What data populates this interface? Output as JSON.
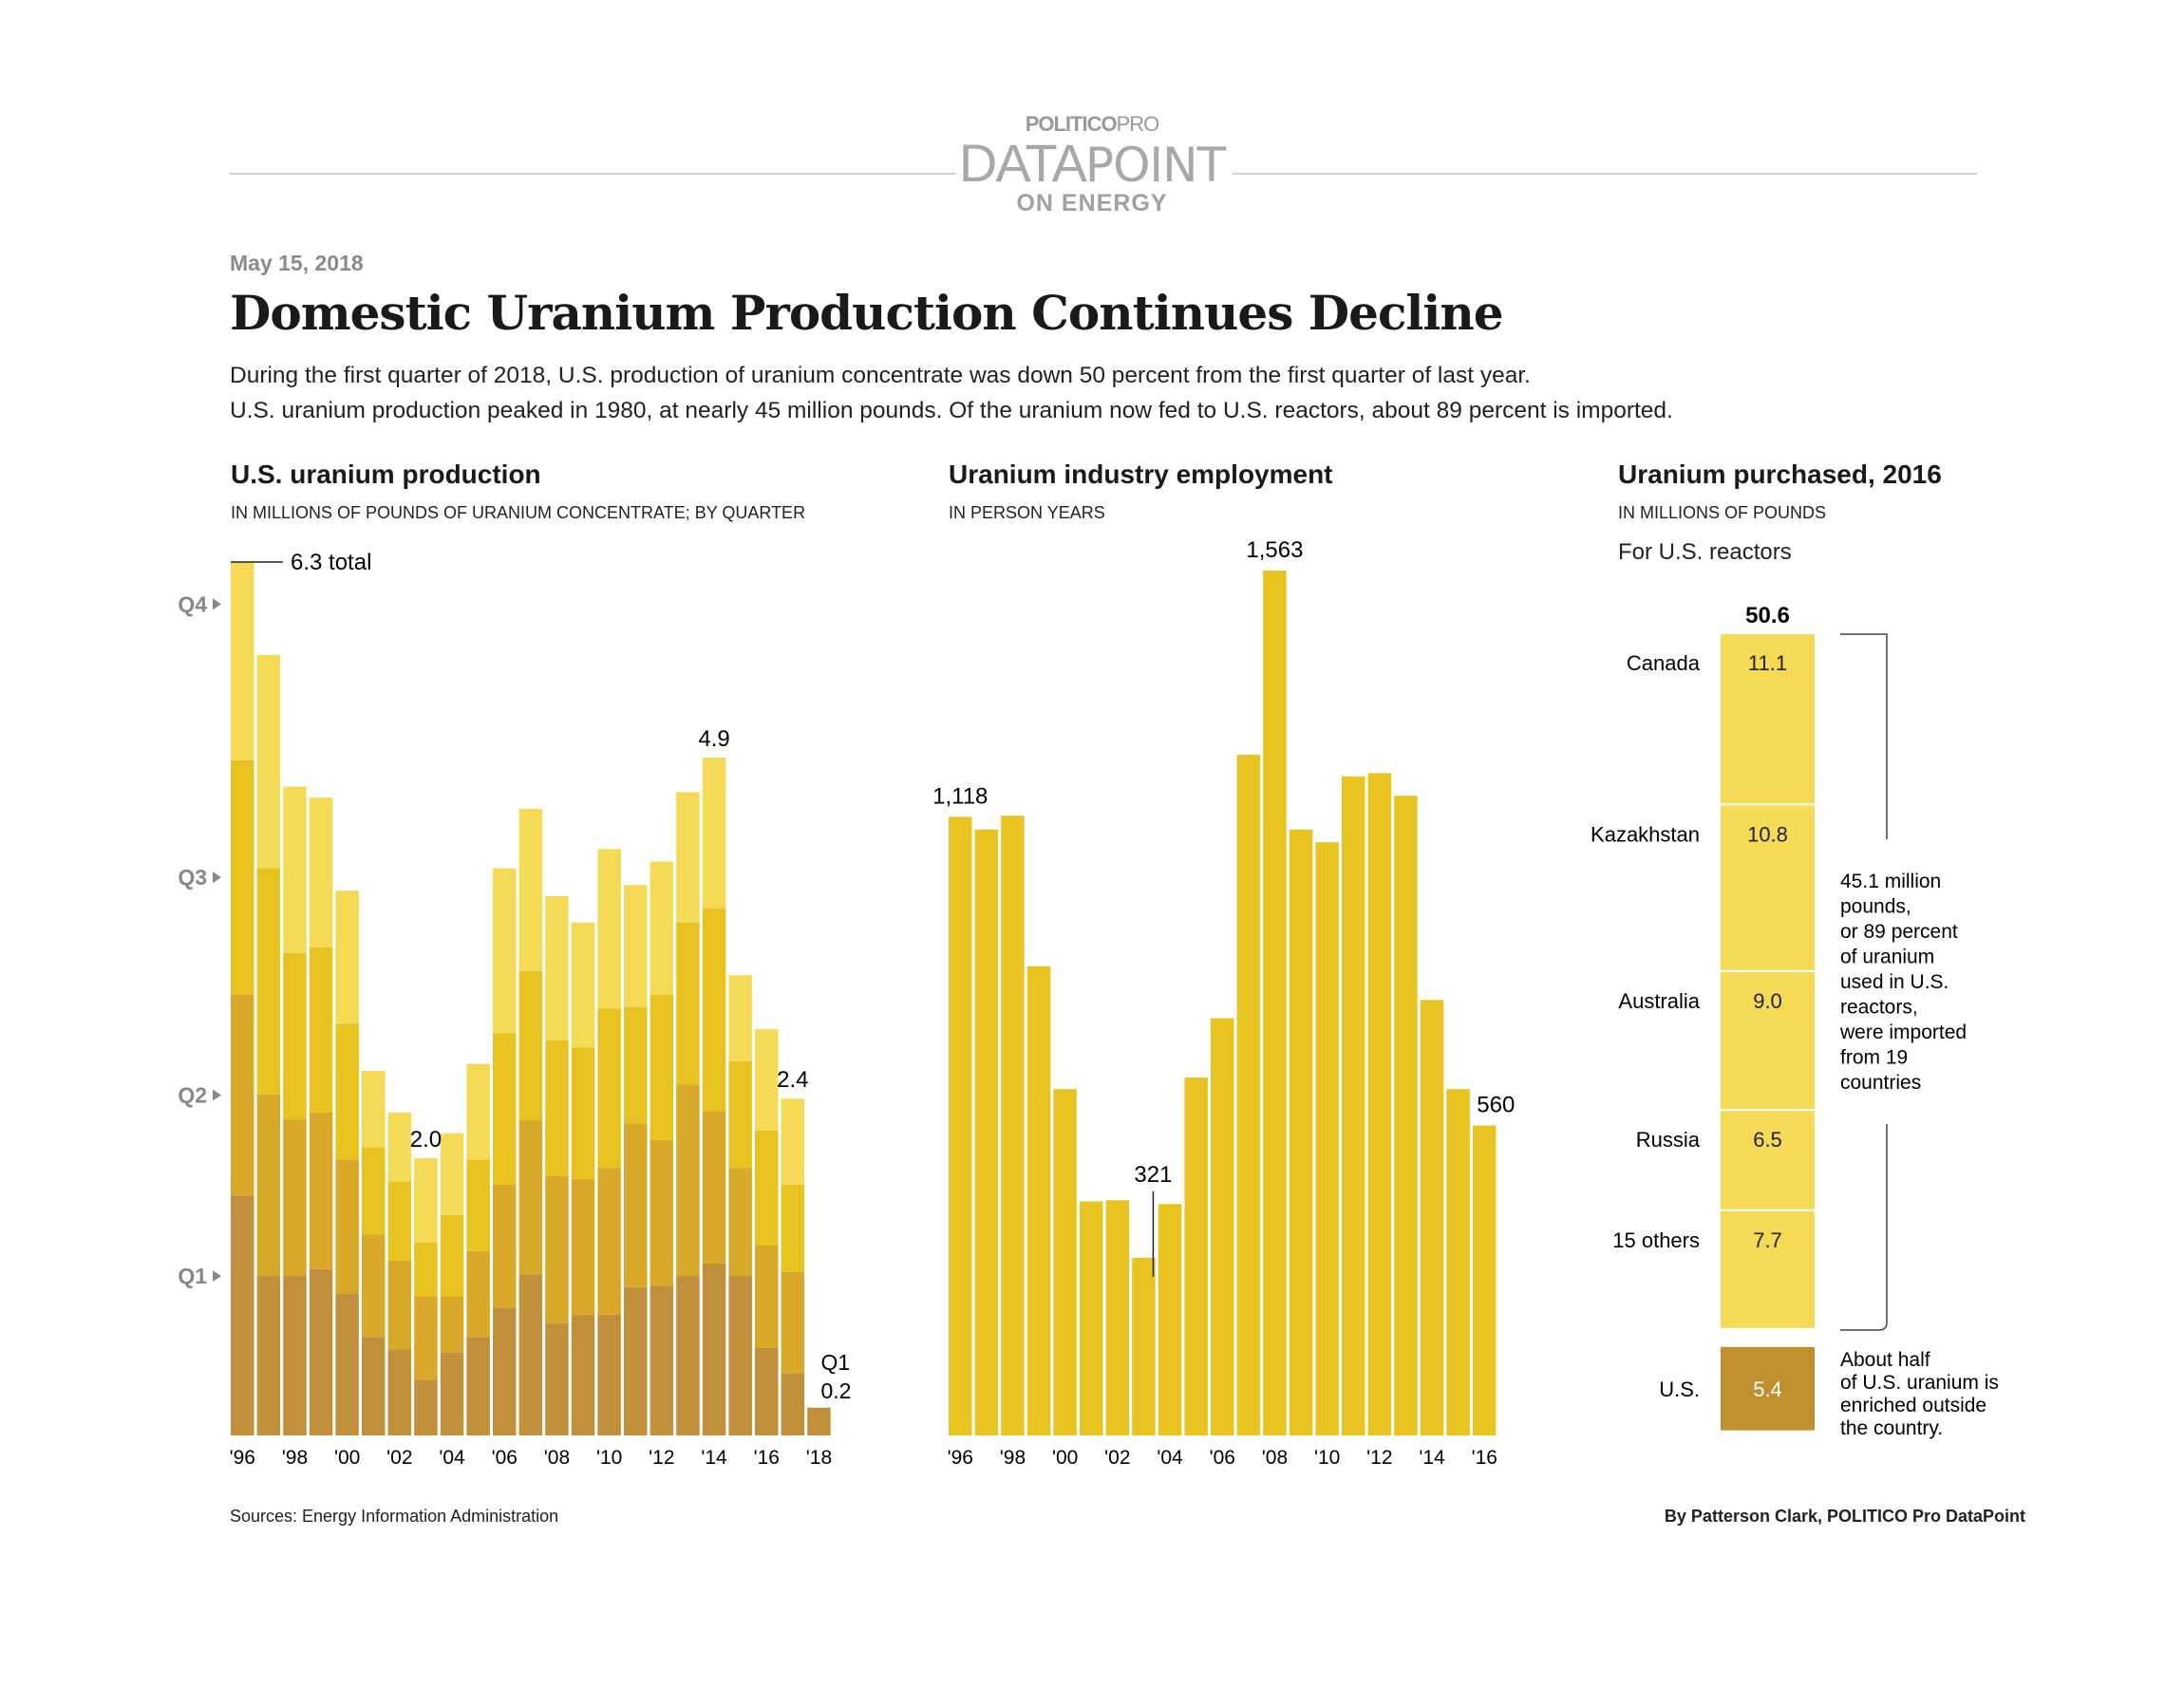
{
  "header": {
    "logo_line1_bold": "POLITICO",
    "logo_line1_light": "PRO",
    "logo_line2_bold": "DATA",
    "logo_line2_light": "POINT",
    "logo_line3": "ON ENERGY"
  },
  "date": "May 15, 2018",
  "title": "Domestic Uranium Production Continues Decline",
  "dek": [
    "During the first quarter of 2018, U.S. production of uranium concentrate was down 50 percent from the first quarter of last year.",
    "U.S. uranium production peaked in 1980, at nearly 45 million pounds. Of the uranium now fed to U.S. reactors, about 89 percent is imported."
  ],
  "colors": {
    "q1": "#c0913a",
    "q2": "#d9a829",
    "q3": "#e8c31f",
    "q4": "#f4da55",
    "employment": "#e9c420",
    "imports": "#f4da55",
    "us": "#c0902f"
  },
  "chart_data": [
    {
      "type": "bar",
      "stacked": true,
      "title": "U.S. uranium production",
      "subtitle": "IN MILLIONS OF POUNDS OF URANIUM CONCENTRATE; BY QUARTER",
      "categories": [
        "1996",
        "1997",
        "1998",
        "1999",
        "2000",
        "2001",
        "2002",
        "2003",
        "2004",
        "2005",
        "2006",
        "2007",
        "2008",
        "2009",
        "2010",
        "2011",
        "2012",
        "2013",
        "2014",
        "2015",
        "2016",
        "2017",
        "2018"
      ],
      "tick_labels": [
        "'96",
        "'98",
        "'00",
        "'02",
        "'04",
        "'06",
        "'08",
        "'10",
        "'12",
        "'14",
        "'16",
        "'18"
      ],
      "quarter_labels": [
        "Q1",
        "Q2",
        "Q3",
        "Q4"
      ],
      "series": [
        {
          "name": "Q1",
          "values": [
            1.73,
            1.15,
            1.15,
            1.2,
            1.02,
            0.71,
            0.62,
            0.4,
            0.6,
            0.71,
            0.92,
            1.16,
            0.81,
            0.87,
            0.87,
            1.07,
            1.08,
            1.15,
            1.24,
            1.15,
            0.63,
            0.45,
            0.2
          ]
        },
        {
          "name": "Q2",
          "values": [
            1.45,
            1.31,
            1.13,
            1.13,
            0.97,
            0.74,
            0.64,
            0.6,
            0.4,
            0.62,
            0.89,
            1.11,
            1.06,
            0.98,
            1.06,
            1.18,
            1.05,
            1.38,
            1.1,
            0.78,
            0.74,
            0.73,
            0
          ]
        },
        {
          "name": "Q3",
          "values": [
            1.69,
            1.63,
            1.2,
            1.19,
            0.98,
            0.63,
            0.57,
            0.39,
            0.59,
            0.66,
            1.09,
            1.08,
            0.98,
            0.95,
            1.15,
            0.84,
            1.05,
            1.17,
            1.46,
            0.77,
            0.83,
            0.63,
            0
          ]
        },
        {
          "name": "Q4",
          "values": [
            1.43,
            1.54,
            1.2,
            1.08,
            0.96,
            0.55,
            0.5,
            0.61,
            0.59,
            0.69,
            1.19,
            1.17,
            1.04,
            0.9,
            1.15,
            0.88,
            0.96,
            0.94,
            1.09,
            0.62,
            0.73,
            0.62,
            0
          ]
        }
      ],
      "annotations": [
        {
          "category": "1996",
          "text": "6.3 total"
        },
        {
          "category": "2003",
          "text": "2.0"
        },
        {
          "category": "2014",
          "text": "4.9"
        },
        {
          "category": "2017",
          "text": "2.4"
        },
        {
          "category": "2018",
          "text": "Q1",
          "text2": "0.2"
        }
      ],
      "ylim": [
        0,
        6.3
      ]
    },
    {
      "type": "bar",
      "title": "Uranium industry employment",
      "subtitle": "IN PERSON YEARS",
      "categories": [
        "1996",
        "1997",
        "1998",
        "1999",
        "2000",
        "2001",
        "2002",
        "2003",
        "2004",
        "2005",
        "2006",
        "2007",
        "2008",
        "2009",
        "2010",
        "2011",
        "2012",
        "2013",
        "2014",
        "2015",
        "2016"
      ],
      "tick_labels": [
        "'96",
        "'98",
        "'00",
        "'02",
        "'04",
        "'06",
        "'08",
        "'10",
        "'12",
        "'14",
        "'16"
      ],
      "values": [
        1118,
        1095,
        1120,
        848,
        626,
        423,
        425,
        321,
        418,
        647,
        754,
        1230,
        1563,
        1095,
        1072,
        1191,
        1197,
        1156,
        787,
        626,
        560
      ],
      "annotations": [
        {
          "category": "1996",
          "text": "1,118"
        },
        {
          "category": "2003",
          "text": "321"
        },
        {
          "category": "2008",
          "text": "1,563"
        },
        {
          "category": "2016",
          "text": "560"
        }
      ],
      "ylim": [
        0,
        1563
      ]
    },
    {
      "type": "bar",
      "stacked": true,
      "title": "Uranium purchased, 2016",
      "subtitle": "IN MILLIONS OF POUNDS",
      "group_label": "For U.S. reactors",
      "total_label": "50.6",
      "categories": [
        "Canada",
        "Kazakhstan",
        "Australia",
        "Russia",
        "15 others",
        "U.S."
      ],
      "values": [
        11.1,
        10.8,
        9.0,
        6.5,
        7.7,
        5.4
      ],
      "value_labels": [
        "11.1",
        "10.8",
        "9.0",
        "6.5",
        "7.7",
        "5.4"
      ],
      "imports_note": [
        "45.1 million",
        "pounds,",
        "or 89 percent",
        "of uranium",
        "used in U.S.",
        "reactors,",
        "were imported",
        "from 19",
        "countries"
      ],
      "us_note": [
        "About half",
        "of U.S. uranium is",
        "enriched outside",
        "the country."
      ]
    }
  ],
  "footer": {
    "sources": "Sources: Energy Information Administration",
    "byline": "By Patterson Clark, POLITICO Pro DataPoint"
  }
}
